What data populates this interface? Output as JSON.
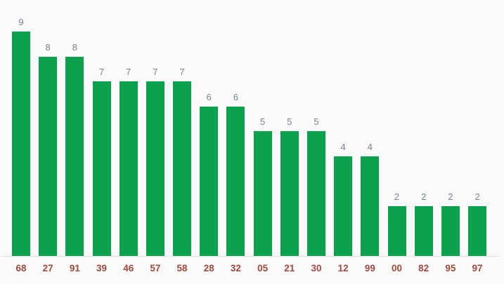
{
  "chart": {
    "background_color": "#fafafa",
    "bar_color": "#0ba24e",
    "value_label_color": "#75849a",
    "axis_label_color": "#a1493f",
    "baseline_color": "#e0e0e0"
  },
  "chart_data": {
    "type": "bar",
    "categories": [
      "68",
      "27",
      "91",
      "39",
      "46",
      "57",
      "58",
      "28",
      "32",
      "05",
      "21",
      "30",
      "12",
      "99",
      "00",
      "82",
      "95",
      "97"
    ],
    "values": [
      9,
      8,
      8,
      7,
      7,
      7,
      7,
      6,
      6,
      5,
      5,
      5,
      4,
      4,
      2,
      2,
      2,
      2
    ],
    "value_labels": [
      "9",
      "8",
      "8",
      "7",
      "7",
      "7",
      "7",
      "6",
      "6",
      "5",
      "5",
      "5",
      "4",
      "4",
      "2",
      "2",
      "2",
      "2"
    ],
    "title": "",
    "xlabel": "",
    "ylabel": "",
    "ylim": [
      0,
      9
    ],
    "grid": false,
    "legend": "none",
    "value_labels_shown": true,
    "y_axis_shown": false,
    "bar_orientation": "vertical"
  }
}
